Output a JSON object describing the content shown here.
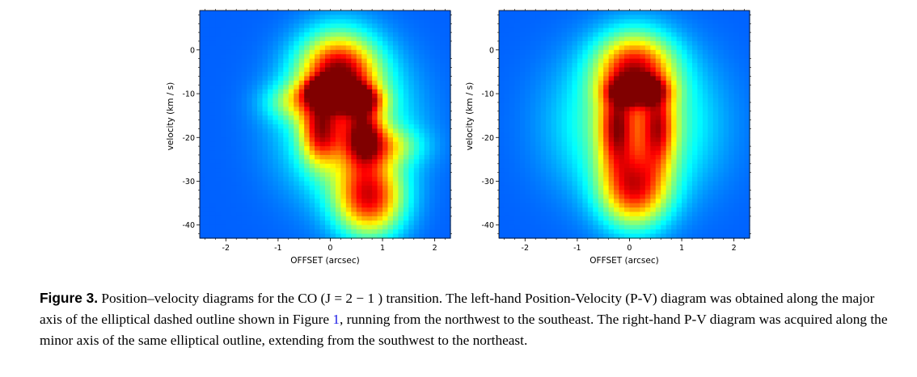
{
  "figure": {
    "label": "Figure 3.",
    "caption_part1": " Position–velocity diagrams for the CO (J = 2 − 1 ) transition. The left-hand Position-Velocity (P-V) diagram was obtained along the major axis of the elliptical dashed outline shown in Figure ",
    "caption_ref": "1",
    "caption_part2": ", running from the northwest to the southeast. The right-hand P-V diagram was acquired along the minor axis of the same elliptical outline, extending from the southwest to the northeast."
  },
  "chart_data": [
    {
      "type": "heatmap",
      "panel": "left",
      "xlabel": "OFFSET (arcsec)",
      "ylabel": "velocity (km / s)",
      "xlim": [
        -2.5,
        2.3
      ],
      "ylim": [
        9,
        -43
      ],
      "x_ticks": [
        -2,
        -1,
        0,
        1,
        2
      ],
      "x_tick_labels": [
        "-2",
        "-1",
        "0",
        "1",
        "2"
      ],
      "y_ticks": [
        -40,
        -30,
        -20,
        -10,
        0
      ],
      "y_tick_labels": [
        "-40",
        "-30",
        "-20",
        "-10",
        "0"
      ],
      "colormap": "jet",
      "background_color": "#4a5ff0",
      "features": [
        {
          "x": 0.75,
          "y": -34,
          "sx": 0.45,
          "sy": 6,
          "amp": 0.6
        },
        {
          "x": 0.15,
          "y": -5,
          "sx": 0.5,
          "sy": 6,
          "amp": 0.62
        },
        {
          "x": 0.3,
          "y": -17,
          "sx": 0.8,
          "sy": 11,
          "amp": 0.35
        },
        {
          "x": -0.2,
          "y": -19,
          "sx": 0.25,
          "sy": 5,
          "amp": 0.42
        },
        {
          "x": 0.65,
          "y": -19,
          "sx": 0.25,
          "sy": 5,
          "amp": 0.4
        },
        {
          "x": 0.05,
          "y": -10,
          "sx": 0.35,
          "sy": 2,
          "amp": 0.55
        },
        {
          "x": 0.55,
          "y": -11.5,
          "sx": 0.3,
          "sy": 2,
          "amp": 0.38
        },
        {
          "x": -0.1,
          "y": -8,
          "sx": 0.18,
          "sy": 1.2,
          "amp": 0.35
        },
        {
          "x": 1.0,
          "y": -22,
          "sx": 0.5,
          "sy": 3,
          "amp": 0.25
        },
        {
          "x": -0.7,
          "y": -12,
          "sx": 0.4,
          "sy": 3,
          "amp": 0.2
        }
      ]
    },
    {
      "type": "heatmap",
      "panel": "right",
      "xlabel": "OFFSET (arcsec)",
      "ylabel": "velocity (km / s)",
      "xlim": [
        -2.5,
        2.3
      ],
      "ylim": [
        9,
        -43
      ],
      "x_ticks": [
        -2,
        -1,
        0,
        1,
        2
      ],
      "x_tick_labels": [
        "-2",
        "-1",
        "0",
        "1",
        "2"
      ],
      "y_ticks": [
        -40,
        -30,
        -20,
        -10,
        0
      ],
      "y_tick_labels": [
        "-40",
        "-30",
        "-20",
        "-10",
        "0"
      ],
      "colormap": "jet",
      "background_color": "#4a5ff0",
      "features": [
        {
          "x": 0.1,
          "y": -32,
          "sx": 0.45,
          "sy": 6,
          "amp": 0.55
        },
        {
          "x": 0.1,
          "y": -4,
          "sx": 0.5,
          "sy": 5.5,
          "amp": 0.55
        },
        {
          "x": 0.1,
          "y": -17,
          "sx": 0.95,
          "sy": 11,
          "amp": 0.35
        },
        {
          "x": -0.25,
          "y": -18,
          "sx": 0.22,
          "sy": 6,
          "amp": 0.42
        },
        {
          "x": 0.55,
          "y": -18,
          "sx": 0.22,
          "sy": 6,
          "amp": 0.4
        },
        {
          "x": 0.15,
          "y": -9.5,
          "sx": 0.35,
          "sy": 2,
          "amp": 0.5
        },
        {
          "x": 0.2,
          "y": -8,
          "sx": 0.18,
          "sy": 1.2,
          "amp": 0.35
        }
      ]
    }
  ]
}
